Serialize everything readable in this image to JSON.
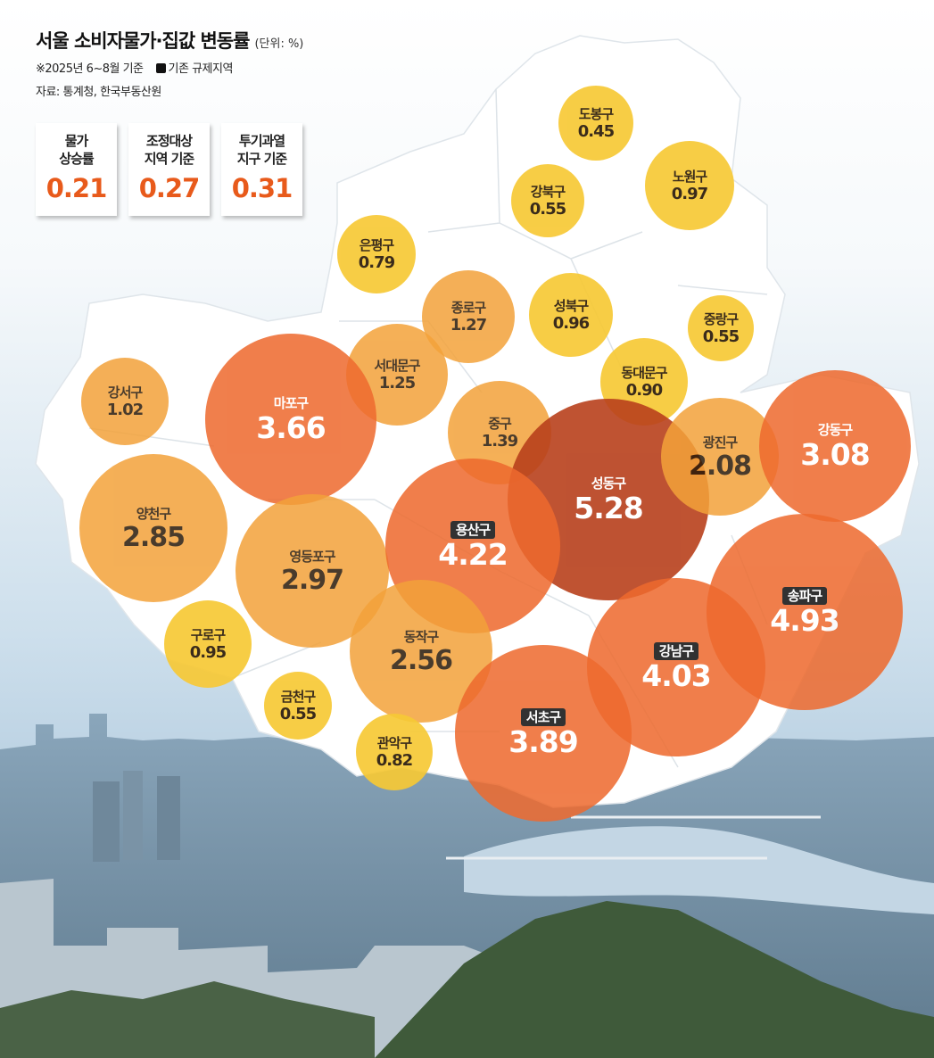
{
  "title": "서울 소비자물가·집값 변동률",
  "unit": "(단위: %)",
  "note": "※2025년 6~8월 기준",
  "legend_label": "기존 규제지역",
  "source": "자료: 통계청, 한국부동산원",
  "summary_cards": [
    {
      "label": "물가\n상승률",
      "value": "0.21"
    },
    {
      "label": "조정대상\n지역 기준",
      "value": "0.27"
    },
    {
      "label": "투기과열\n지구 기준",
      "value": "0.31"
    }
  ],
  "colors": {
    "low": "#f7c936",
    "mid": "#f3a23a",
    "high": "#ee6a2e",
    "highest": "#b8401c",
    "card_value": "#e85a1b"
  },
  "districts": [
    {
      "name": "도봉구",
      "value": "0.45",
      "regulated": false
    },
    {
      "name": "노원구",
      "value": "0.97",
      "regulated": false
    },
    {
      "name": "강북구",
      "value": "0.55",
      "regulated": false
    },
    {
      "name": "은평구",
      "value": "0.79",
      "regulated": false
    },
    {
      "name": "종로구",
      "value": "1.27",
      "regulated": false
    },
    {
      "name": "성북구",
      "value": "0.96",
      "regulated": false
    },
    {
      "name": "중랑구",
      "value": "0.55",
      "regulated": false
    },
    {
      "name": "서대문구",
      "value": "1.25",
      "regulated": false
    },
    {
      "name": "강서구",
      "value": "1.02",
      "regulated": false
    },
    {
      "name": "마포구",
      "value": "3.66",
      "regulated": false
    },
    {
      "name": "동대문구",
      "value": "0.90",
      "regulated": false
    },
    {
      "name": "중구",
      "value": "1.39",
      "regulated": false
    },
    {
      "name": "성동구",
      "value": "5.28",
      "regulated": false
    },
    {
      "name": "광진구",
      "value": "2.08",
      "regulated": false
    },
    {
      "name": "강동구",
      "value": "3.08",
      "regulated": false
    },
    {
      "name": "양천구",
      "value": "2.85",
      "regulated": false
    },
    {
      "name": "영등포구",
      "value": "2.97",
      "regulated": false
    },
    {
      "name": "용산구",
      "value": "4.22",
      "regulated": true
    },
    {
      "name": "송파구",
      "value": "4.93",
      "regulated": true
    },
    {
      "name": "구로구",
      "value": "0.95",
      "regulated": false
    },
    {
      "name": "동작구",
      "value": "2.56",
      "regulated": false
    },
    {
      "name": "강남구",
      "value": "4.03",
      "regulated": true
    },
    {
      "name": "금천구",
      "value": "0.55",
      "regulated": false
    },
    {
      "name": "관악구",
      "value": "0.82",
      "regulated": false
    },
    {
      "name": "서초구",
      "value": "3.89",
      "regulated": true
    }
  ]
}
